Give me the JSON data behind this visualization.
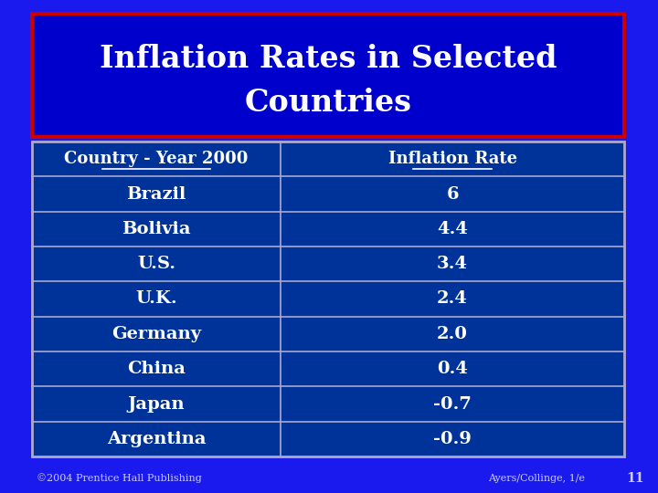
{
  "title_line1": "Inflation Rates in Selected",
  "title_line2": "Countries",
  "col1_header": "Country - Year 2000",
  "col2_header": "Inflation Rate",
  "rows": [
    [
      "Brazil",
      "6"
    ],
    [
      "Bolivia",
      "4.4"
    ],
    [
      "U.S.",
      "3.4"
    ],
    [
      "U.K.",
      "2.4"
    ],
    [
      "Germany",
      "2.0"
    ],
    [
      "China",
      "0.4"
    ],
    [
      "Japan",
      "-0.7"
    ],
    [
      "Argentina",
      "-0.9"
    ]
  ],
  "bg_color": "#1a1aee",
  "title_box_fill": "#0000cc",
  "title_box_border": "#cc0000",
  "table_fill": "#003399",
  "table_border": "#aaaacc",
  "header_text_color": "#ffffff",
  "row_text_color": "#ffffff",
  "title_text_color": "#ffffff",
  "footer_left": "©2004 Prentice Hall Publishing",
  "footer_right": "Ayers/Collinge, 1/e",
  "footer_number": "11",
  "footer_color": "#ccccff",
  "title_fontsize": 24,
  "header_fontsize": 13,
  "row_fontsize": 14,
  "footer_fontsize": 8
}
